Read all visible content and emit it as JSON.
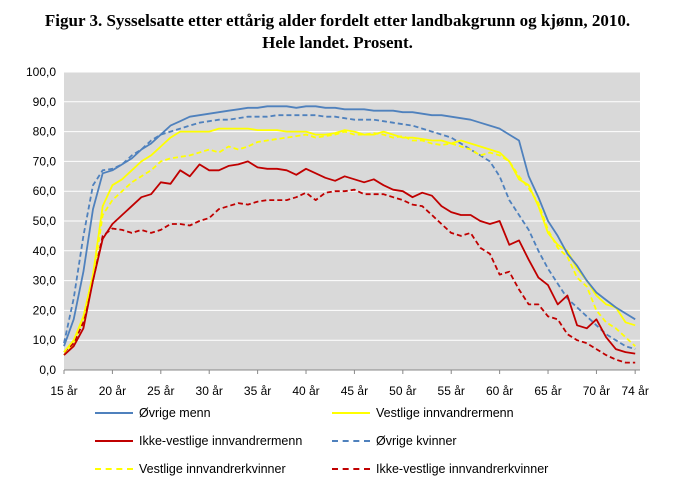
{
  "title": {
    "line1": "Figur 3. Sysselsatte etter ettårig alder fordelt etter landbakgrunn og kjønn, 2010.",
    "line2": "Hele landet. Prosent."
  },
  "chart_data": {
    "type": "line",
    "title": "Figur 3. Sysselsatte etter ettårig alder fordelt etter landbakgrunn og kjønn, 2010. Hele landet. Prosent.",
    "xlabel": "",
    "ylabel": "",
    "x": [
      15,
      16,
      17,
      18,
      19,
      20,
      21,
      22,
      23,
      24,
      25,
      26,
      27,
      28,
      29,
      30,
      31,
      32,
      33,
      34,
      35,
      36,
      37,
      38,
      39,
      40,
      41,
      42,
      43,
      44,
      45,
      46,
      47,
      48,
      49,
      50,
      51,
      52,
      53,
      54,
      55,
      56,
      57,
      58,
      59,
      60,
      61,
      62,
      63,
      64,
      65,
      66,
      67,
      68,
      69,
      70,
      71,
      72,
      73,
      74
    ],
    "x_ticks": [
      15,
      20,
      25,
      30,
      35,
      40,
      45,
      50,
      55,
      60,
      65,
      70,
      74
    ],
    "x_tick_labels": [
      "15 år",
      "20 år",
      "25 år",
      "30 år",
      "35 år",
      "40 år",
      "45 år",
      "50 år",
      "55 år",
      "60 år",
      "65 år",
      "70 år",
      "74 år"
    ],
    "ylim": [
      0,
      100
    ],
    "y_ticks": [
      0,
      10,
      20,
      30,
      40,
      50,
      60,
      70,
      80,
      90,
      100
    ],
    "y_tick_labels": [
      "0,0",
      "10,0",
      "20,0",
      "30,0",
      "40,0",
      "50,0",
      "60,0",
      "70,0",
      "80,0",
      "90,0",
      "100,0"
    ],
    "grid": true,
    "plot_background": "#d9d9d9",
    "legend_position": "bottom",
    "series": [
      {
        "name": "Øvrige menn",
        "color": "#4f81bd",
        "dash": "solid",
        "values": [
          8,
          17,
          33,
          54,
          66,
          67,
          69,
          71,
          74,
          76,
          79,
          82,
          83.5,
          85,
          85.5,
          86,
          86.5,
          87,
          87.5,
          88,
          88,
          88.5,
          88.5,
          88.5,
          88,
          88.5,
          88.5,
          88,
          88,
          87.5,
          87.5,
          87.5,
          87,
          87,
          87,
          86.5,
          86.5,
          86,
          85.5,
          85.5,
          85,
          84.5,
          84,
          83,
          82,
          81,
          79,
          77,
          65,
          58,
          50,
          45,
          39,
          35,
          30,
          26,
          23.5,
          21,
          19,
          17
        ]
      },
      {
        "name": "Vestlige innvandrermenn",
        "color": "#ffff00",
        "dash": "solid",
        "values": [
          6,
          10,
          18,
          32,
          55,
          62,
          64,
          67,
          70,
          72,
          75,
          78,
          80,
          80,
          80,
          80,
          81,
          81,
          81,
          81,
          80.5,
          80.5,
          80.5,
          80,
          80,
          80,
          79,
          79,
          79.5,
          80.5,
          80,
          79,
          79,
          80,
          79,
          78,
          78,
          77.5,
          77,
          77,
          76,
          77,
          76,
          75,
          74,
          73,
          70,
          64,
          62,
          55,
          46,
          42,
          40,
          34,
          30,
          25,
          22,
          21,
          16,
          15
        ]
      },
      {
        "name": "Ikke-vestlige innvandrermenn",
        "color": "#c00000",
        "dash": "solid",
        "values": [
          5,
          8,
          14,
          30,
          44,
          49,
          52,
          55,
          58,
          59,
          63,
          62.5,
          67,
          65,
          69,
          67,
          67,
          68.5,
          69,
          70,
          68,
          67.5,
          67.5,
          67,
          65.5,
          67.5,
          66,
          64.5,
          63.5,
          65,
          64,
          63,
          64,
          62,
          60.5,
          60,
          58,
          59.5,
          58.5,
          55,
          53,
          52,
          52,
          50,
          49,
          50,
          42,
          43.5,
          37,
          31,
          28.5,
          22,
          25,
          15,
          14,
          17,
          11,
          7,
          6,
          5.5
        ]
      },
      {
        "name": "Øvrige kvinner",
        "color": "#4f81bd",
        "dash": "dash",
        "values": [
          9,
          24,
          45,
          62,
          67,
          67.5,
          69,
          72,
          74,
          77,
          79,
          80,
          81,
          82,
          83,
          83.5,
          84,
          84,
          84.5,
          85,
          85,
          85,
          85.5,
          85.5,
          85.5,
          85.5,
          85.5,
          85,
          85,
          84.5,
          84,
          84,
          84,
          83.5,
          83,
          82.5,
          82,
          81,
          80,
          79,
          78,
          76,
          74,
          72,
          70,
          65,
          57,
          52,
          47,
          40,
          34,
          29,
          24,
          21,
          18,
          15,
          12,
          10,
          8,
          7
        ]
      },
      {
        "name": "Vestlige innvandrerkvinner",
        "color": "#ffff00",
        "dash": "dash",
        "values": [
          5,
          9,
          17,
          30,
          52,
          57,
          60,
          63,
          65,
          67,
          70,
          71,
          71.5,
          72,
          73,
          74,
          73,
          75,
          74,
          75,
          76.5,
          77,
          77.5,
          78,
          78.5,
          79,
          78,
          78.5,
          79,
          80,
          79,
          79,
          79.5,
          79,
          78,
          78.5,
          77,
          77,
          76,
          75.5,
          76,
          75,
          74,
          72,
          73,
          72,
          70,
          65,
          61,
          56,
          47,
          41,
          38,
          31,
          28,
          20,
          16,
          14,
          11,
          8
        ]
      },
      {
        "name": "Ikke-vestlige innvandrerkvinner",
        "color": "#c00000",
        "dash": "dash",
        "values": [
          6,
          9,
          16,
          30,
          45,
          47.5,
          47,
          46,
          47,
          46,
          47,
          49,
          49,
          48.5,
          50,
          51,
          54,
          55,
          56,
          55.5,
          56.5,
          57,
          57,
          57,
          58,
          59.5,
          57,
          59.5,
          60,
          60,
          60.5,
          59,
          59,
          59,
          58,
          57,
          55.5,
          55,
          52,
          49,
          46,
          45,
          46,
          41,
          39,
          32,
          33,
          27,
          22,
          22,
          18,
          17,
          12,
          10,
          9,
          7,
          5,
          3.5,
          2.5,
          2.5
        ]
      }
    ]
  }
}
